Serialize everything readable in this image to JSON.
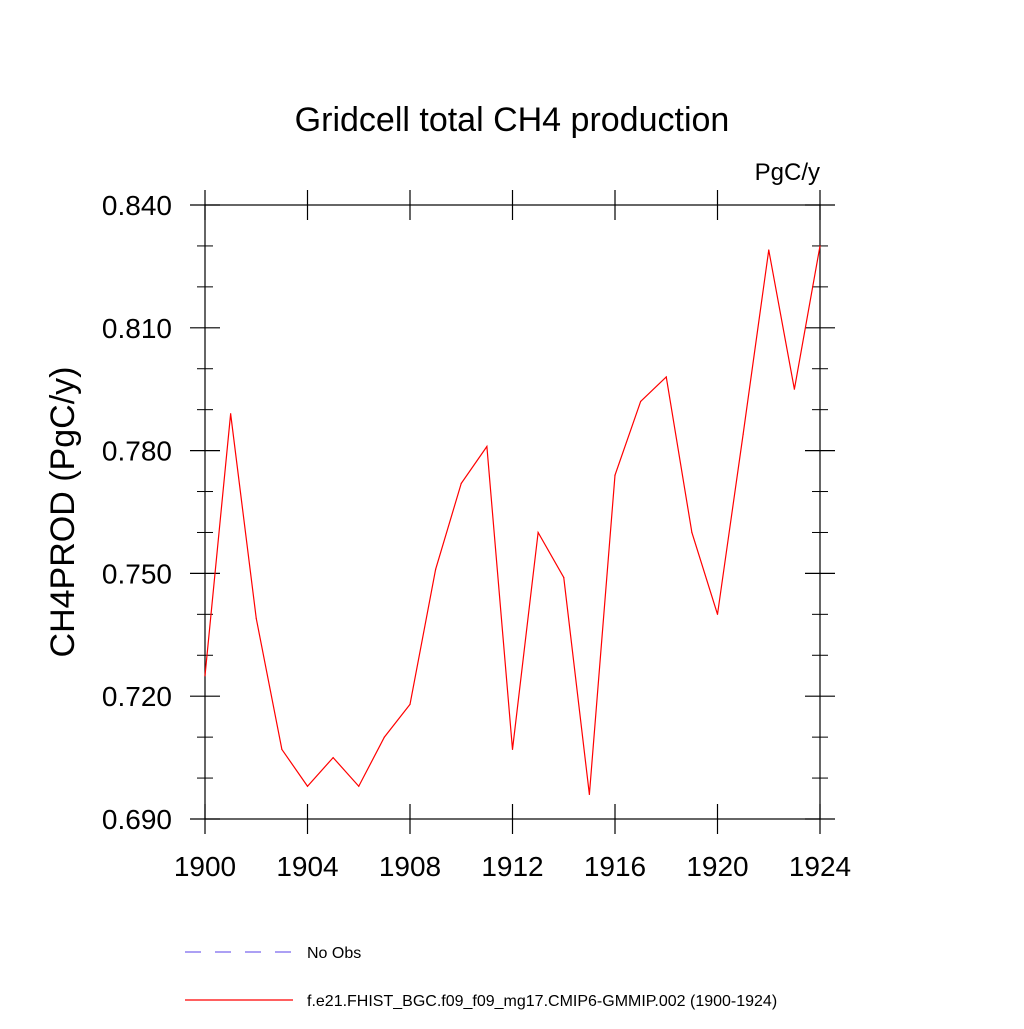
{
  "chart_data": {
    "type": "line",
    "title": "Gridcell total CH4 production",
    "units_label": "PgC/y",
    "ylabel": "CH4PROD  (PgC/y)",
    "xlabel": "",
    "xlim": [
      1900,
      1924
    ],
    "ylim": [
      0.69,
      0.84
    ],
    "x_ticks": [
      1900,
      1904,
      1908,
      1912,
      1916,
      1920,
      1924
    ],
    "x_tick_labels": [
      "1900",
      "1904",
      "1908",
      "1912",
      "1916",
      "1920",
      "1924"
    ],
    "y_ticks": [
      0.69,
      0.72,
      0.75,
      0.78,
      0.81,
      0.84
    ],
    "y_tick_labels": [
      "0.690",
      "0.720",
      "0.750",
      "0.780",
      "0.810",
      "0.840"
    ],
    "grid": false,
    "legend_position": "bottom",
    "series": [
      {
        "name": "f.e21.FHIST_BGC.f09_f09_mg17.CMIP6-GMMIP.002 (1900-1924)",
        "color": "#ff0000",
        "style": "solid",
        "x": [
          1900,
          1901,
          1902,
          1903,
          1904,
          1905,
          1906,
          1907,
          1908,
          1909,
          1910,
          1911,
          1912,
          1913,
          1914,
          1915,
          1916,
          1917,
          1918,
          1919,
          1920,
          1921,
          1922,
          1923,
          1924
        ],
        "values": [
          0.725,
          0.789,
          0.739,
          0.707,
          0.698,
          0.705,
          0.698,
          0.71,
          0.718,
          0.751,
          0.772,
          0.781,
          0.707,
          0.76,
          0.749,
          0.696,
          0.774,
          0.792,
          0.798,
          0.76,
          0.74,
          0.784,
          0.829,
          0.795,
          0.83
        ]
      }
    ],
    "legend": [
      {
        "label": "No Obs",
        "color": "#7b68ee",
        "style": "dashed"
      },
      {
        "label": "f.e21.FHIST_BGC.f09_f09_mg17.CMIP6-GMMIP.002 (1900-1924)",
        "color": "#ff0000",
        "style": "solid"
      }
    ]
  }
}
